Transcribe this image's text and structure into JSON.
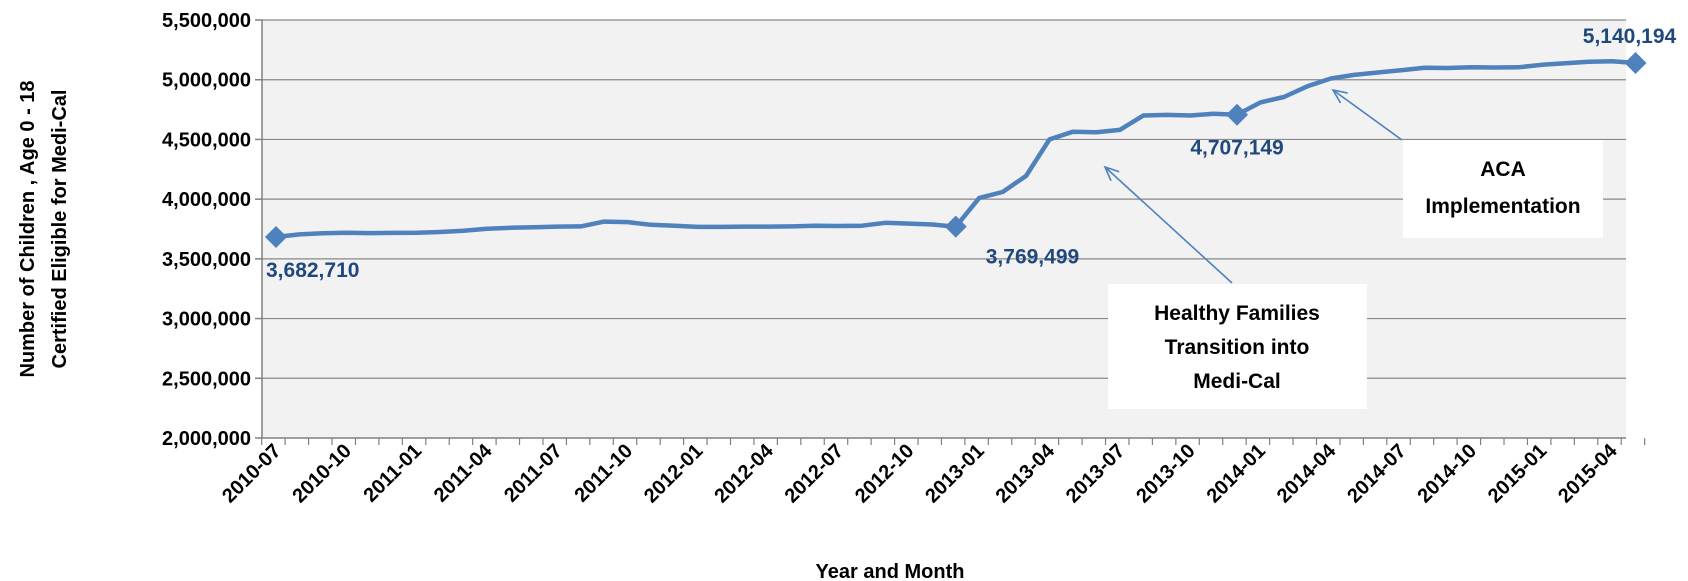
{
  "chart_data": {
    "type": "line",
    "title": "",
    "xlabel": "Year and Month",
    "ylabel_lines": [
      "Number of Children , Age 0 - 18",
      "Certified Eligible for Medi-Cal"
    ],
    "ylim": [
      2000000,
      5500000
    ],
    "yticks": [
      2000000,
      2500000,
      3000000,
      3500000,
      4000000,
      4500000,
      5000000,
      5500000
    ],
    "ytick_labels": [
      "2,000,000",
      "2,500,000",
      "3,000,000",
      "3,500,000",
      "4,000,000",
      "4,500,000",
      "5,000,000",
      "5,500,000"
    ],
    "xtick_labels": [
      "2010-07",
      "2010-10",
      "2011-01",
      "2011-04",
      "2011-07",
      "2011-10",
      "2012-01",
      "2012-04",
      "2012-07",
      "2012-10",
      "2013-01",
      "2013-04",
      "2013-07",
      "2013-10",
      "2014-01",
      "2014-04",
      "2014-07",
      "2014-10",
      "2015-01",
      "2015-04"
    ],
    "grid": true,
    "legend": "none",
    "line_color": "#4F81BD",
    "label_color": "#1F497D",
    "series": [
      {
        "x": [
          "2010-07",
          "2010-08",
          "2010-09",
          "2010-10",
          "2010-11",
          "2010-12",
          "2011-01",
          "2011-02",
          "2011-03",
          "2011-04",
          "2011-05",
          "2011-06",
          "2011-07",
          "2011-08",
          "2011-09",
          "2011-10",
          "2011-11",
          "2011-12",
          "2012-01",
          "2012-02",
          "2012-03",
          "2012-04",
          "2012-05",
          "2012-06",
          "2012-07",
          "2012-08",
          "2012-09",
          "2012-10",
          "2012-11",
          "2012-12",
          "2013-01",
          "2013-02",
          "2013-03",
          "2013-04",
          "2013-05",
          "2013-06",
          "2013-07",
          "2013-08",
          "2013-09",
          "2013-10",
          "2013-11",
          "2013-12",
          "2014-01",
          "2014-02",
          "2014-03",
          "2014-04",
          "2014-05",
          "2014-06",
          "2014-07",
          "2014-08",
          "2014-09",
          "2014-10",
          "2014-11",
          "2014-12",
          "2015-01",
          "2015-02",
          "2015-03",
          "2015-04",
          "2015-05"
        ],
        "values": [
          3682710,
          3705000,
          3715000,
          3718000,
          3716000,
          3717000,
          3718000,
          3725000,
          3735000,
          3752000,
          3760000,
          3765000,
          3770000,
          3772000,
          3812000,
          3808000,
          3785000,
          3778000,
          3768000,
          3768000,
          3770000,
          3770000,
          3772000,
          3778000,
          3775000,
          3778000,
          3802000,
          3795000,
          3788000,
          3769499,
          4010000,
          4060000,
          4195000,
          4500000,
          4565000,
          4560000,
          4580000,
          4700000,
          4705000,
          4700000,
          4715000,
          4707149,
          4810000,
          4855000,
          4945000,
          5010000,
          5040000,
          5060000,
          5080000,
          5100000,
          5098000,
          5105000,
          5102000,
          5104000,
          5125000,
          5138000,
          5150000,
          5155000,
          5140194
        ]
      }
    ],
    "markers": [
      {
        "index": 0,
        "label": "3,682,710",
        "label_pos": "below"
      },
      {
        "index": 29,
        "label": "3,769,499",
        "label_pos": "below-right"
      },
      {
        "index": 41,
        "label": "4,707,149",
        "label_pos": "below"
      },
      {
        "index": 58,
        "label": "5,140,194",
        "label_pos": "above"
      }
    ],
    "annotations": [
      {
        "lines": [
          "Healthy Families",
          "Transition into",
          "Medi-Cal"
        ],
        "points_to": "2013-06"
      },
      {
        "lines": [
          "ACA",
          "Implementation"
        ],
        "points_to": "2014-04"
      }
    ]
  }
}
